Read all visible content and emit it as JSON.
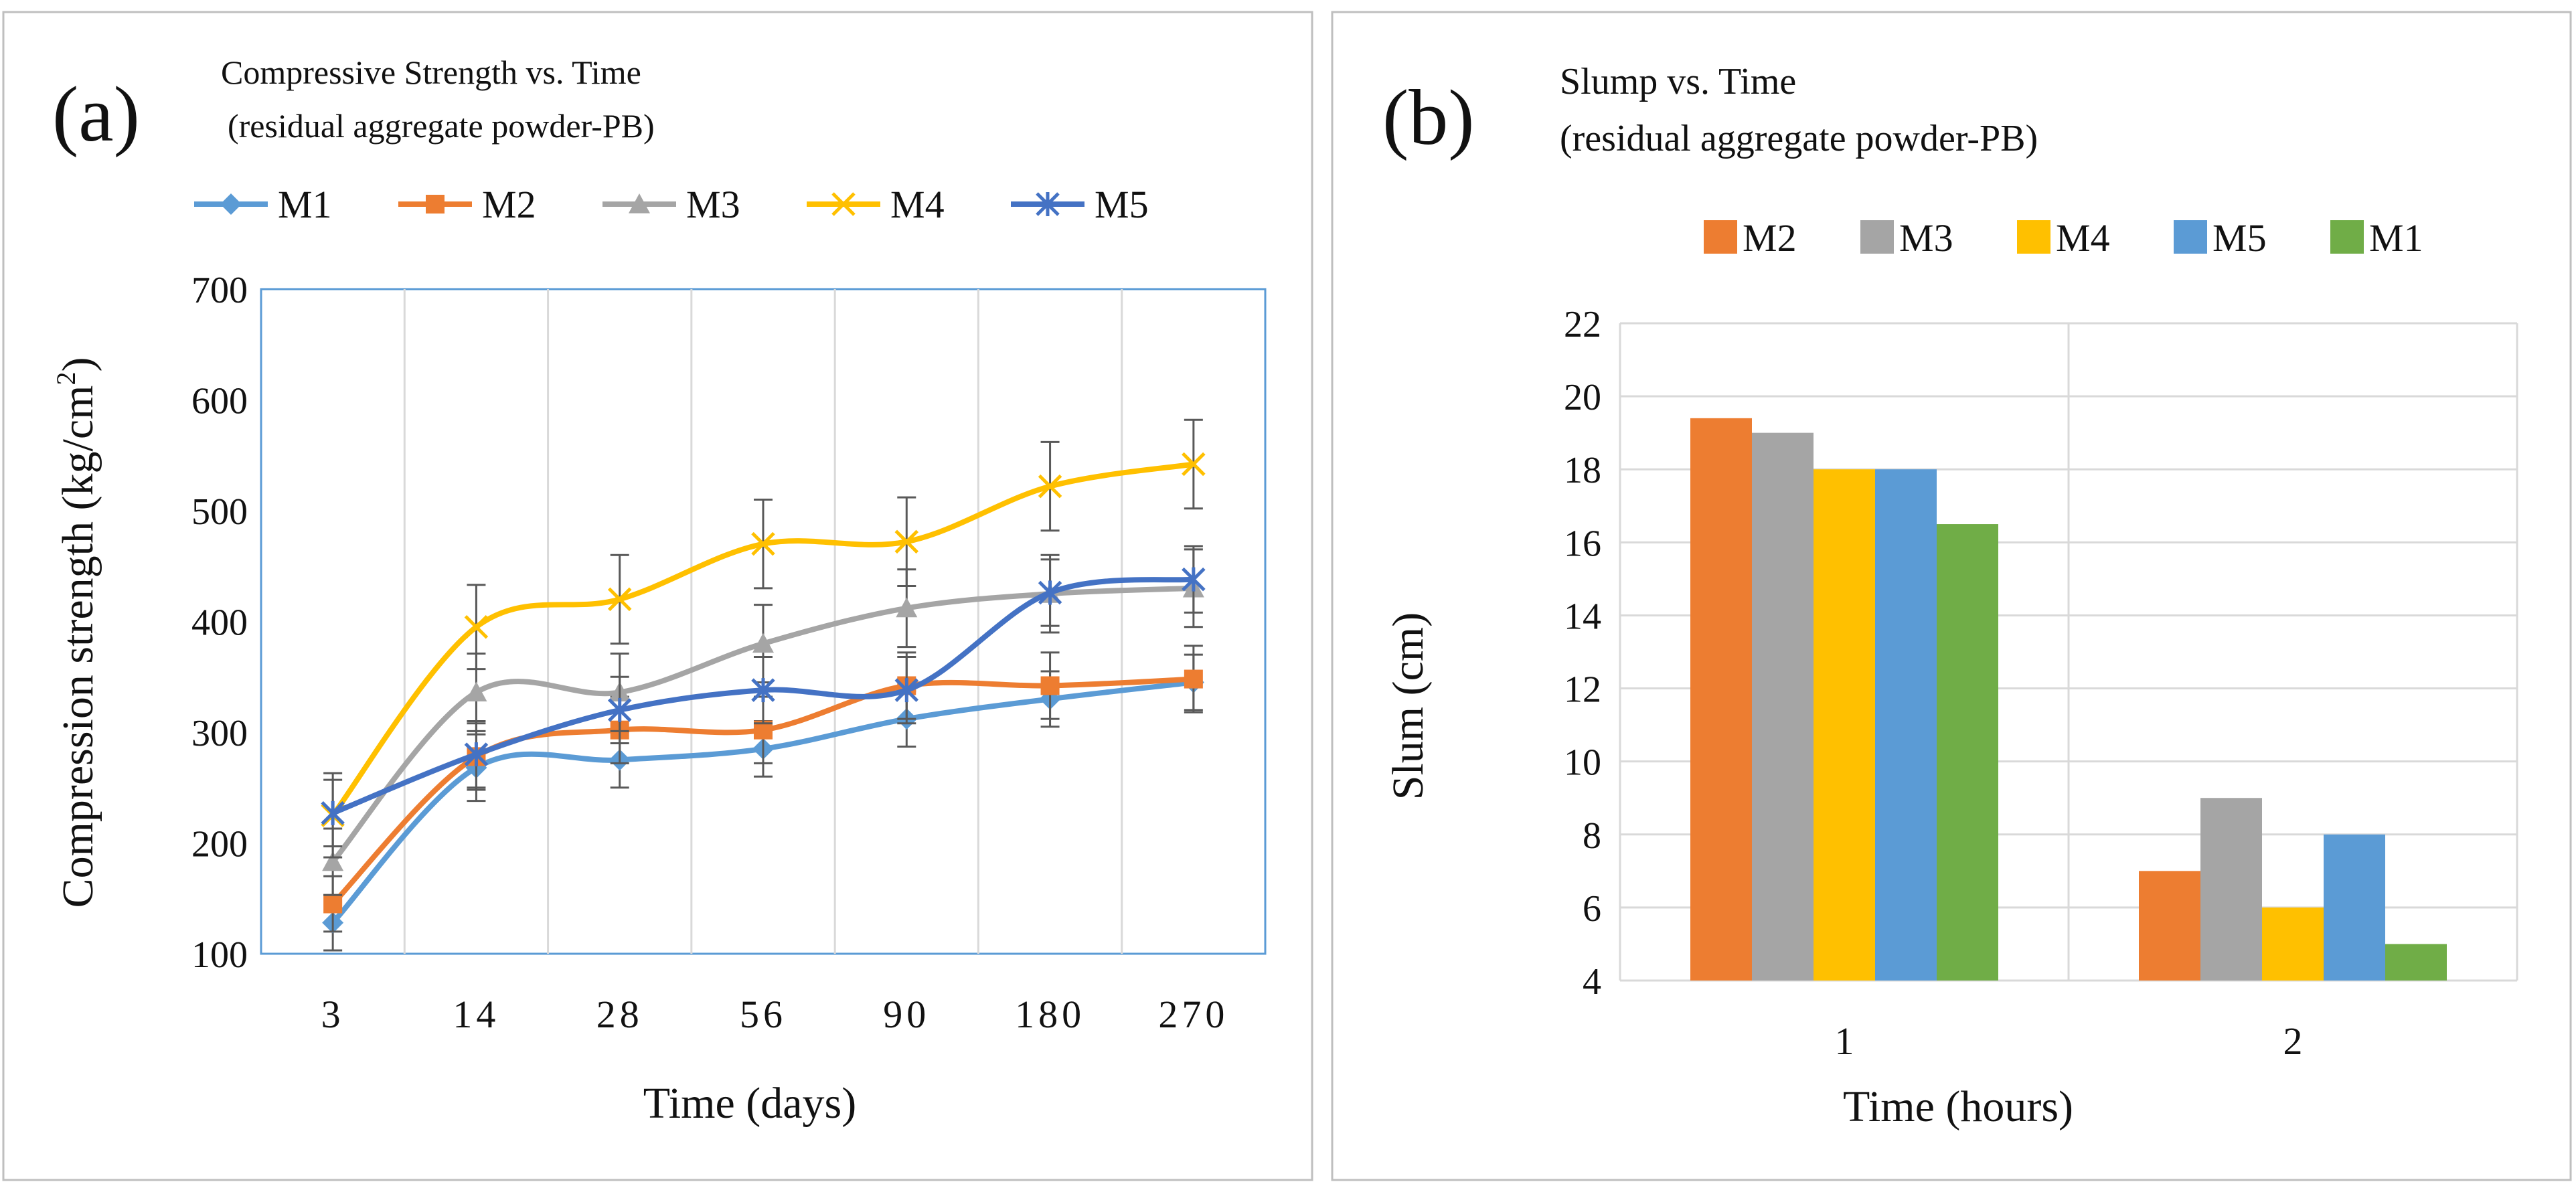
{
  "colors": {
    "M1": "#5b9bd5",
    "M2": "#ed7d31",
    "M3": "#a5a5a5",
    "M4": "#ffc000",
    "M5": "#4472c4",
    "bar_M1": "#70ad47",
    "bar_M5": "#5b9bd5",
    "grid": "#d9d9d9",
    "error_bar": "#595959"
  },
  "chart_data": [
    {
      "type": "line",
      "panel_label": "(a)",
      "title": "Compressive Strength vs. Time",
      "subtitle": "(residual aggregate powder-PB)",
      "xlabel": "Time  (days)",
      "ylabel_main": "Compression strength (kg/cm",
      "ylabel_sup": "2",
      "ylabel_end": ")",
      "categories": [
        "3",
        "14",
        "28",
        "56",
        "90",
        "180",
        "270"
      ],
      "ylim": [
        100,
        700
      ],
      "yticks": [
        "100",
        "200",
        "300",
        "400",
        "500",
        "600",
        "700"
      ],
      "legend_position": "top",
      "grid": "vertical",
      "series": [
        {
          "name": "M1",
          "marker": "diamond",
          "values": [
            128,
            268,
            275,
            285,
            312,
            330,
            345
          ],
          "error": [
            25,
            30,
            25,
            25,
            25,
            25,
            25
          ]
        },
        {
          "name": "M2",
          "marker": "square",
          "values": [
            145,
            278,
            302,
            302,
            342,
            342,
            348
          ],
          "error": [
            25,
            30,
            30,
            30,
            30,
            30,
            30
          ]
        },
        {
          "name": "M3",
          "marker": "triangle",
          "values": [
            183,
            336,
            336,
            380,
            412,
            425,
            430
          ],
          "error": [
            30,
            35,
            35,
            35,
            35,
            35,
            35
          ]
        },
        {
          "name": "M4",
          "marker": "x",
          "values": [
            225,
            395,
            420,
            470,
            472,
            522,
            542
          ],
          "error": [
            38,
            38,
            40,
            40,
            40,
            40,
            40
          ]
        },
        {
          "name": "M5",
          "marker": "asterisk",
          "values": [
            227,
            280,
            320,
            338,
            338,
            426,
            438
          ],
          "error": [
            30,
            30,
            30,
            30,
            30,
            30,
            30
          ]
        }
      ]
    },
    {
      "type": "bar",
      "panel_label": "(b)",
      "title": "Slump vs. Time",
      "subtitle": "(residual aggregate powder-PB)",
      "xlabel": "Time  (hours)",
      "ylabel": "Slum  (cm)",
      "categories": [
        "1",
        "2"
      ],
      "ylim": [
        4,
        22
      ],
      "yticks": [
        "4",
        "6",
        "8",
        "10",
        "12",
        "14",
        "16",
        "18",
        "20",
        "22"
      ],
      "legend_position": "top",
      "grid": "horizontal",
      "series": [
        {
          "name": "M2",
          "values": [
            19.4,
            7.0
          ]
        },
        {
          "name": "M3",
          "values": [
            19.0,
            9.0
          ]
        },
        {
          "name": "M4",
          "values": [
            18.0,
            6.0
          ]
        },
        {
          "name": "M5",
          "values": [
            18.0,
            8.0
          ]
        },
        {
          "name": "M1",
          "values": [
            16.5,
            5.0
          ]
        }
      ]
    }
  ]
}
